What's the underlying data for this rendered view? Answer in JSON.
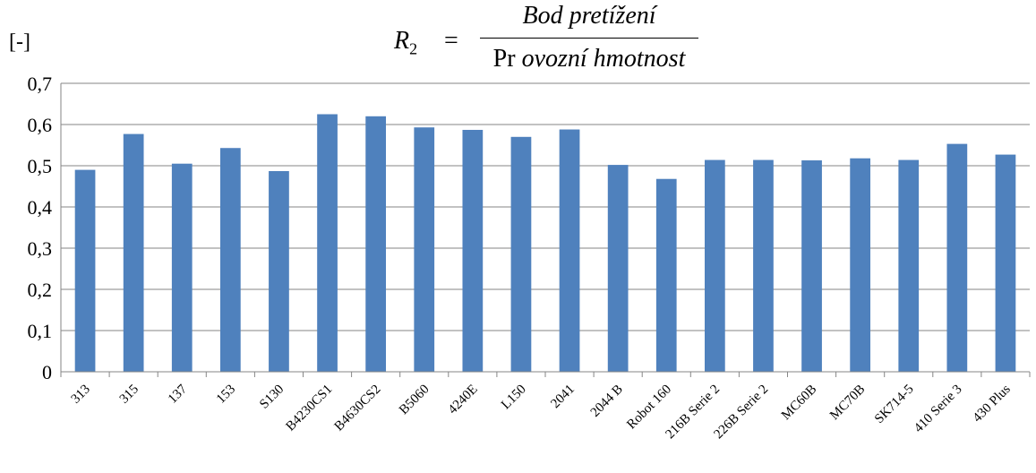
{
  "formula": {
    "lhs": "R",
    "lhs_sub": "2",
    "eq": "=",
    "numerator": "Bod pretížení",
    "denominator_prefix": "Pr",
    "denominator_italic": "ovozní hmotnost"
  },
  "chart_data": {
    "type": "bar",
    "ylabel": "[-]",
    "ylim": [
      0,
      0.7
    ],
    "yticks": [
      "0",
      "0,1",
      "0,2",
      "0,3",
      "0,4",
      "0,5",
      "0,6",
      "0,7"
    ],
    "grid": true,
    "categories": [
      "313",
      "315",
      "137",
      "153",
      "S130",
      "B4230CS1",
      "B4630CS2",
      "B5060",
      "4240E",
      "L150",
      "2041",
      "2044 B",
      "Robot 160",
      "216B Serie 2",
      "226B Serie 2",
      "MC60B",
      "MC70B",
      "SK714-5",
      "410 Serie 3",
      "430 Plus"
    ],
    "values": [
      0.49,
      0.577,
      0.505,
      0.543,
      0.487,
      0.625,
      0.62,
      0.593,
      0.587,
      0.57,
      0.588,
      0.502,
      0.468,
      0.514,
      0.514,
      0.513,
      0.518,
      0.514,
      0.553,
      0.527
    ],
    "bar_color": "#4F81BD"
  }
}
